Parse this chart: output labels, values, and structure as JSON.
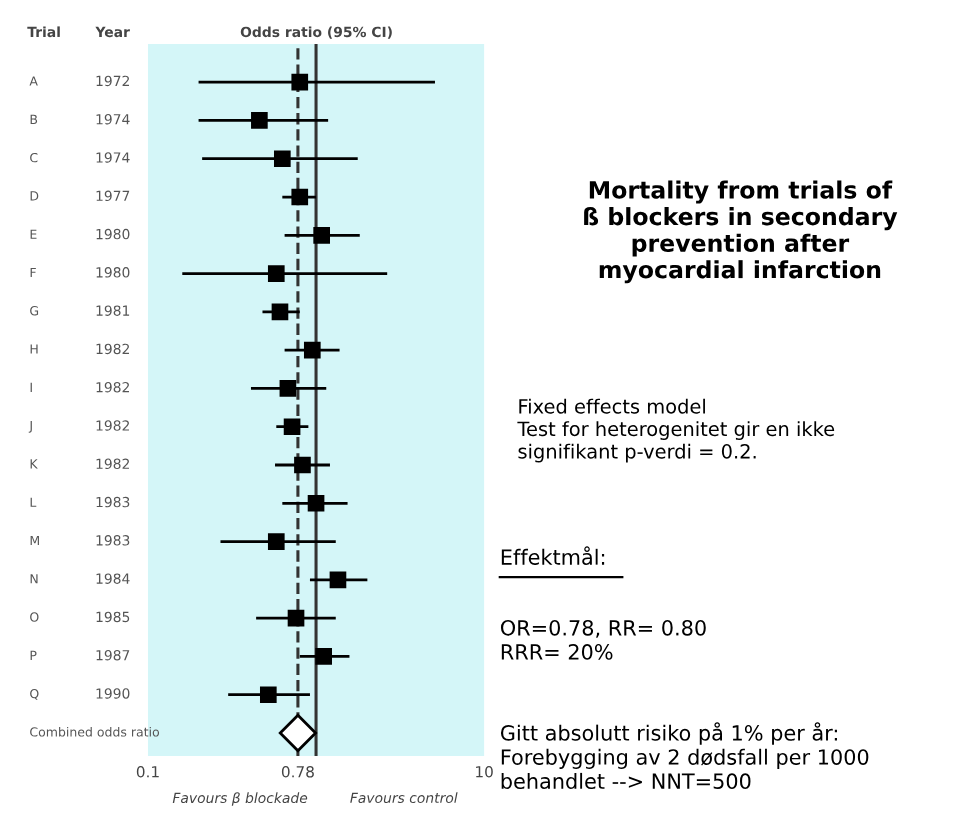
{
  "chart_data": {
    "type": "scatter",
    "orientation": "horizontal",
    "title": "Mortality from trials of\nß blockers in secondary\nprevention after\nmyocardial infarction",
    "categories": [
      "A",
      "B",
      "C",
      "D",
      "E",
      "F",
      "G",
      "H",
      "I",
      "J",
      "K",
      "L",
      "M",
      "N",
      "O",
      "P",
      "Q",
      "Combined odds ratio"
    ],
    "series": [
      {
        "type": "scatter",
        "marker": "square",
        "color": "#000000",
        "values": [
          0.8,
          0.46,
          0.63,
          0.8,
          1.08,
          0.58,
          0.61,
          0.95,
          0.68,
          0.72,
          0.83,
          1.0,
          0.58,
          1.35,
          0.76,
          1.11,
          0.52,
          null
        ],
        "errors": [
          [
            0.2,
            5.1
          ],
          [
            0.2,
            1.18
          ],
          [
            0.21,
            1.77
          ],
          [
            0.63,
            1.0
          ],
          [
            0.65,
            1.82
          ],
          [
            0.16,
            2.65
          ],
          [
            0.48,
            0.8
          ],
          [
            0.65,
            1.38
          ],
          [
            0.41,
            1.15
          ],
          [
            0.58,
            0.9
          ],
          [
            0.57,
            1.21
          ],
          [
            0.63,
            1.54
          ],
          [
            0.27,
            1.31
          ],
          [
            0.92,
            2.02
          ],
          [
            0.44,
            1.31
          ],
          [
            0.8,
            1.58
          ],
          [
            0.3,
            0.92
          ],
          null
        ]
      },
      {
        "type": "scatter",
        "marker": "diamond",
        "color": "#ffffff",
        "values": [
          null,
          null,
          null,
          null,
          null,
          null,
          null,
          null,
          null,
          null,
          null,
          null,
          null,
          null,
          null,
          null,
          null,
          0.78
        ],
        "errors": [
          null,
          null,
          null,
          null,
          null,
          null,
          null,
          null,
          null,
          null,
          null,
          null,
          null,
          null,
          null,
          null,
          null,
          [
            0.71,
            0.87
          ]
        ]
      }
    ],
    "log": "x",
    "xlim": [
      0.1,
      10
    ],
    "xticks": [
      0.1,
      0.78,
      10
    ],
    "grid": false,
    "legend": false,
    "ref_lines": [
      {
        "axis": "x",
        "value": 1,
        "color": "#333333",
        "line_style": "solid"
      },
      {
        "axis": "x",
        "value": 0.78,
        "color": "#333333",
        "line_style": "dashed"
      }
    ],
    "annotations": [
      "Trial",
      "Year",
      "Odds ratio (95% CI)",
      "Favours β blockade",
      "Favours control",
      "Fixed effects model\nTest for heterogenitet gir en ikke\nsignifikant p-verdi = 0.2.",
      "Effektmål:",
      "OR=0.78, RR= 0.80\nRRR= 20%",
      "Gitt absolutt risiko på 1% per år:\nForebygging av 2 dødsfall per 1000\nbehandlet --> NNT=500",
      "1972",
      "1974",
      "1974",
      "1977",
      "1980",
      "1980",
      "1981",
      "1982",
      "1982",
      "1982",
      "1982",
      "1983",
      "1983",
      "1984",
      "1985",
      "1987",
      "1990"
    ]
  }
}
